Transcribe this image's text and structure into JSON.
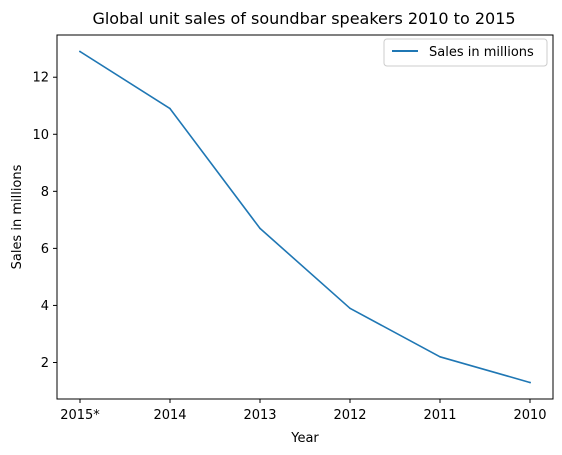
{
  "chart_data": {
    "type": "line",
    "title": "Global unit sales of soundbar speakers 2010 to 2015",
    "xlabel": "Year",
    "ylabel": "Sales in millions",
    "categories": [
      "2015*",
      "2014",
      "2013",
      "2012",
      "2011",
      "2010"
    ],
    "series": [
      {
        "name": "Sales in millions",
        "values": [
          12.9,
          10.9,
          6.7,
          3.9,
          2.2,
          1.3
        ],
        "color": "#1f77b4"
      }
    ],
    "ylim": [
      0.72,
      13.48
    ],
    "yticks": [
      2,
      4,
      6,
      8,
      10,
      12
    ],
    "grid": false,
    "legend": "top-right"
  }
}
